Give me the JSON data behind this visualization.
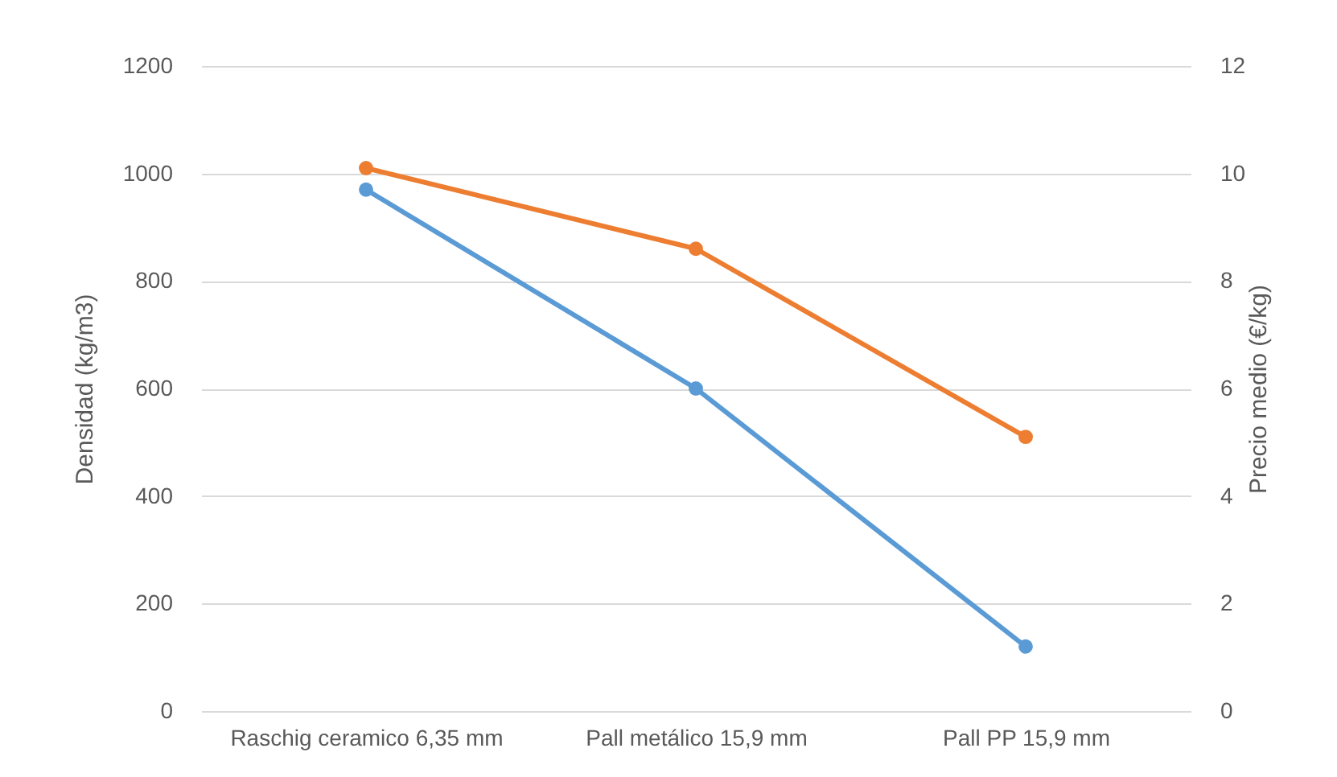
{
  "chart_data": {
    "type": "line",
    "categories": [
      "Raschig ceramico 6,35 mm",
      "Pall metálico  15,9 mm",
      "Pall PP 15,9 mm"
    ],
    "ylabel": "Densidad (kg/m3)",
    "y2label": "Precio medio (€/kg)",
    "ylim": [
      0,
      1200
    ],
    "yticks": [
      0,
      200,
      400,
      600,
      800,
      1000,
      1200
    ],
    "y2lim": [
      0,
      12
    ],
    "y2ticks": [
      0,
      2,
      4,
      6,
      8,
      10,
      12
    ],
    "series": [
      {
        "color": "#5b9bd5",
        "values": [
          970,
          600,
          120
        ]
      },
      {
        "color": "#ed7d31",
        "values": [
          10.1,
          8.6,
          5.1
        ],
        "axis": "y2"
      }
    ],
    "grid": "y",
    "marker": "circle",
    "line_style": "solid"
  }
}
